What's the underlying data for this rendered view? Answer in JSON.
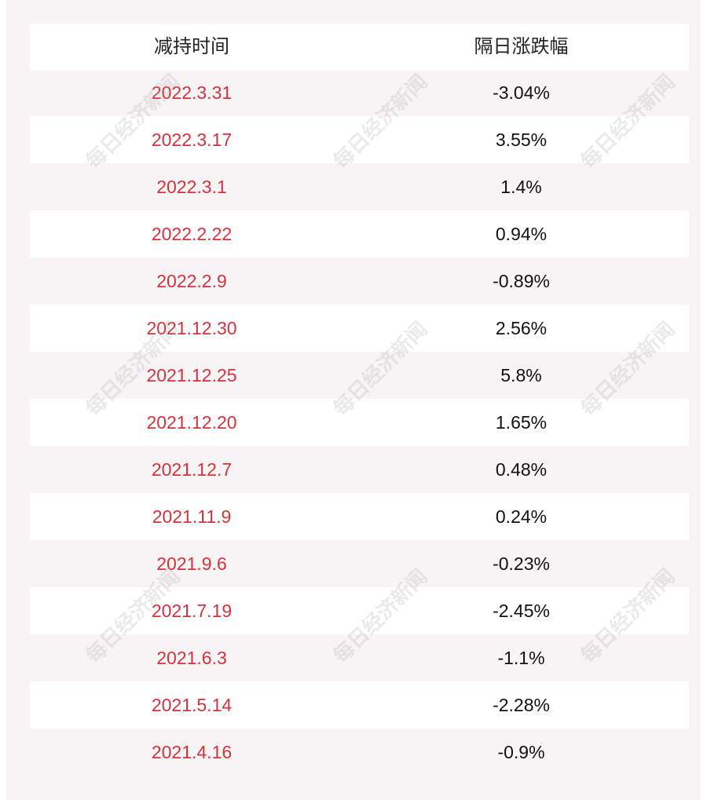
{
  "watermark": "每日经济新闻",
  "table": {
    "header": [
      "减持时间",
      "隔日涨跌幅"
    ],
    "rows": [
      [
        "2022.3.31",
        "-3.04%"
      ],
      [
        "2022.3.17",
        "3.55%"
      ],
      [
        "2022.3.1",
        "1.4%"
      ],
      [
        "2022.2.22",
        "0.94%"
      ],
      [
        "2022.2.9",
        "-0.89%"
      ],
      [
        "2021.12.30",
        "2.56%"
      ],
      [
        "2021.12.25",
        "5.8%"
      ],
      [
        "2021.12.20",
        "1.65%"
      ],
      [
        "2021.12.7",
        "0.48%"
      ],
      [
        "2021.11.9",
        "0.24%"
      ],
      [
        "2021.9.6",
        "-0.23%"
      ],
      [
        "2021.7.19",
        "-2.45%"
      ],
      [
        "2021.6.3",
        "-1.1%"
      ],
      [
        "2021.5.14",
        "-2.28%"
      ],
      [
        "2021.4.16",
        "-0.9%"
      ]
    ]
  }
}
